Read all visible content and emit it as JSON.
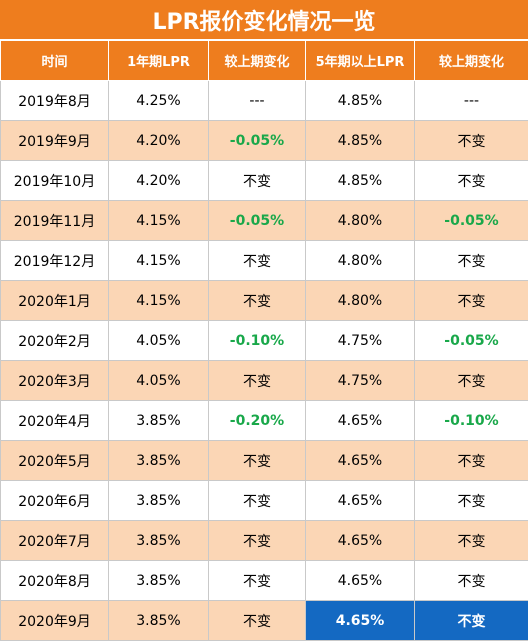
{
  "title": "LPR报价变化情况一览",
  "headers": [
    "时间",
    "1年期LPR",
    "较上期变化",
    "5年期以上LPR",
    "较上期变化"
  ],
  "rows": [
    [
      "2019年8月",
      "4.25%",
      "---",
      "4.85%",
      "---"
    ],
    [
      "2019年9月",
      "4.20%",
      "-0.05%",
      "4.85%",
      "不变"
    ],
    [
      "2019年10月",
      "4.20%",
      "不变",
      "4.85%",
      "不变"
    ],
    [
      "2019年11月",
      "4.15%",
      "-0.05%",
      "4.80%",
      "-0.05%"
    ],
    [
      "2019年12月",
      "4.15%",
      "不变",
      "4.80%",
      "不变"
    ],
    [
      "2020年1月",
      "4.15%",
      "不变",
      "4.80%",
      "不变"
    ],
    [
      "2020年2月",
      "4.05%",
      "-0.10%",
      "4.75%",
      "-0.05%"
    ],
    [
      "2020年3月",
      "4.05%",
      "不变",
      "4.75%",
      "不变"
    ],
    [
      "2020年4月",
      "3.85%",
      "-0.20%",
      "4.65%",
      "-0.10%"
    ],
    [
      "2020年5月",
      "3.85%",
      "不变",
      "4.65%",
      "不变"
    ],
    [
      "2020年6月",
      "3.85%",
      "不变",
      "4.65%",
      "不变"
    ],
    [
      "2020年7月",
      "3.85%",
      "不变",
      "4.65%",
      "不变"
    ],
    [
      "2020年8月",
      "3.85%",
      "不变",
      "4.65%",
      "不变"
    ],
    [
      "2020年9月",
      "3.85%",
      "不变",
      "4.65%",
      "不变"
    ]
  ],
  "colors": {
    "header_bg": "#ee7d1e",
    "stripe_bg": "#fbd6b5",
    "negative_change": "#19a84a",
    "highlight_bg": "#1469c2"
  }
}
